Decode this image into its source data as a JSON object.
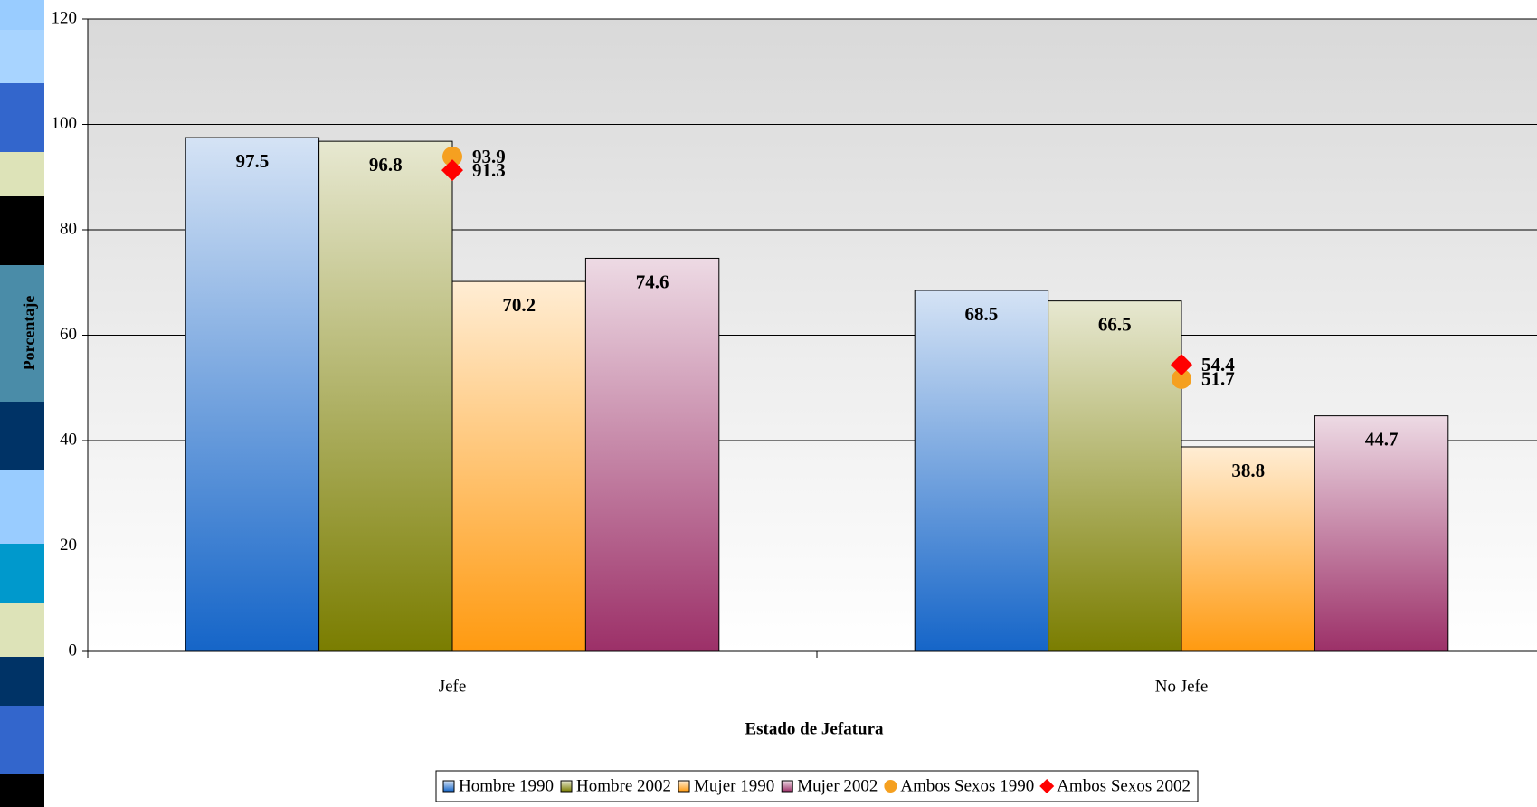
{
  "chart_data": {
    "type": "bar",
    "y_label": "Porcentaje",
    "x_label": "Estado de Jefatura",
    "categories": [
      "Jefe",
      "No Jefe"
    ],
    "series": [
      {
        "name": "Hombre 1990",
        "color": "#1565c8",
        "values": [
          97.5,
          68.5
        ]
      },
      {
        "name": "Hombre 2002",
        "color": "#7a7d00",
        "values": [
          96.8,
          66.5
        ]
      },
      {
        "name": "Mujer 1990",
        "color": "#ff9a10",
        "values": [
          70.2,
          38.8
        ]
      },
      {
        "name": "Mujer 2002",
        "color": "#9c3068",
        "values": [
          74.6,
          44.7
        ]
      },
      {
        "name": "Ambos Sexos 1990",
        "type": "scatter",
        "marker": "circle",
        "color": "#f5a020",
        "values": [
          93.9,
          51.7
        ]
      },
      {
        "name": "Ambos Sexos 2002",
        "type": "scatter",
        "marker": "diamond",
        "color": "#ff0000",
        "values": [
          91.3,
          54.4
        ]
      }
    ],
    "ylim": [
      0,
      120
    ],
    "yticks": [
      0,
      20,
      40,
      60,
      80,
      100,
      120
    ],
    "grid": true,
    "legend": "bottom"
  }
}
